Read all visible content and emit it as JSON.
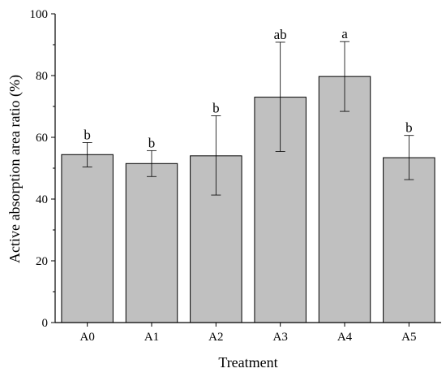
{
  "chart_data": {
    "type": "bar",
    "xlabel": "Treatment",
    "ylabel": "Active absorption area ratio (%)",
    "ylim": [
      0,
      100
    ],
    "yticks": [
      0,
      20,
      40,
      60,
      80,
      100
    ],
    "grid": false,
    "categories": [
      "A0",
      "A1",
      "A2",
      "A3",
      "A4",
      "A5"
    ],
    "values": [
      54.4,
      51.5,
      54.0,
      73.0,
      79.7,
      53.4
    ],
    "error_low": [
      50.4,
      47.3,
      41.3,
      55.4,
      68.4,
      46.3
    ],
    "error_high": [
      58.3,
      55.7,
      67.0,
      90.8,
      91.0,
      60.6
    ],
    "significance_labels": [
      "b",
      "b",
      "b",
      "ab",
      "a",
      "b"
    ],
    "bar_color": "#c0c0c0",
    "bar_edge_color": "#000000"
  }
}
